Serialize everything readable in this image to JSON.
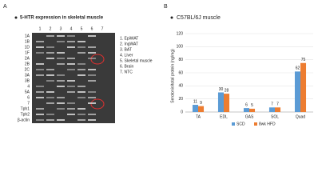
{
  "panels": {
    "a": "A",
    "b": "B"
  },
  "gel": {
    "title": "5-HTR expression in skeletal muscle",
    "lanes": [
      "1",
      "2",
      "3",
      "4",
      "5",
      "6",
      "7"
    ],
    "rows": [
      "1A",
      "1B",
      "1D",
      "1F",
      "2A",
      "2B",
      "2C",
      "3A",
      "3B",
      "4",
      "5A",
      "6",
      "7",
      "Tph1",
      "Tph2",
      "β-actin"
    ],
    "legend": [
      "1. EpiWAT",
      "2. IngWAT",
      "3. BAT",
      "4. Liver",
      "5. Skeletal muscle",
      "6. Brain",
      "7. NTC"
    ]
  },
  "chart_data": {
    "type": "bar",
    "title": "C57BL/6J muscle",
    "y_label": "Serotonin/total protein (ng/mg)",
    "categories": [
      "TA",
      "EDL",
      "GAS",
      "SOL",
      "Quad"
    ],
    "series": [
      {
        "name": "SCD",
        "color": "#5b9bd5",
        "values": [
          11,
          30,
          6,
          7,
          62
        ]
      },
      {
        "name": "8wk HFD",
        "color": "#ed7d31",
        "values": [
          9,
          28,
          5,
          7,
          75
        ]
      }
    ],
    "ylim": [
      0,
      120
    ],
    "yticks": [
      0,
      20,
      40,
      60,
      80,
      100,
      120
    ],
    "grid": true
  }
}
